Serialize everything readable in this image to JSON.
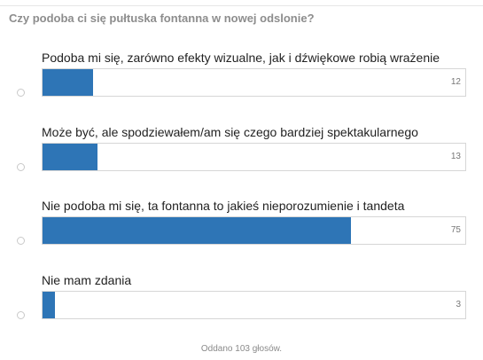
{
  "poll": {
    "question": "Czy podoba ci się pułtuska fontanna w nowej odslonie?",
    "options": [
      {
        "label": "Podoba mi się, zarówno efekty wizualne, jak i dźwiękowe robią wrażenie",
        "count": "12",
        "fraction": 0.12
      },
      {
        "label": "Może być, ale spodziewałem/am się czego bardziej spektakularnego",
        "count": "13",
        "fraction": 0.13
      },
      {
        "label": "Nie podoba mi się, ta fontanna to jakieś nieporozumienie i tandeta",
        "count": "75",
        "fraction": 0.73
      },
      {
        "label": "Nie mam zdania",
        "count": "3",
        "fraction": 0.03
      }
    ],
    "footer": "Oddano 103 głosów.",
    "accent_color": "#2e75b6"
  }
}
